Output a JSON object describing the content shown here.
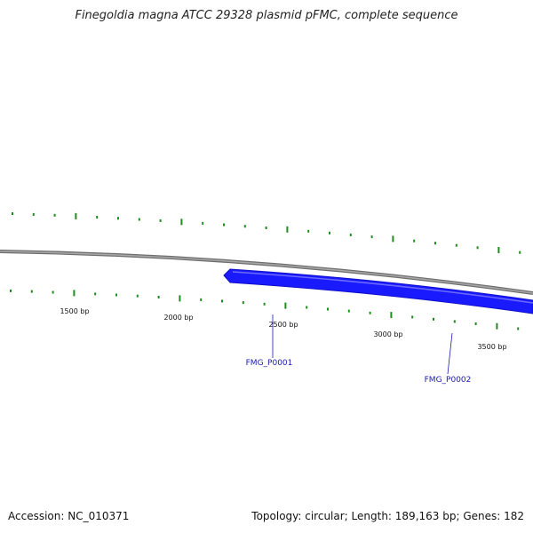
{
  "title": "Finegoldia magna ATCC 29328 plasmid pFMC, complete sequence",
  "footer": {
    "accession": "Accession: NC_010371",
    "summary": "Topology: circular; Length: 189,163 bp; Genes: 182"
  },
  "colors": {
    "backbone": "#8a8a8a",
    "gene_forward": "#1a1aff",
    "gene_label": "#1a1aaa",
    "gc_marks": "#1e8c1e",
    "tick_label": "#111111"
  },
  "scale_ticks": [
    {
      "label": "1500 bp"
    },
    {
      "label": "2000 bp"
    },
    {
      "label": "2500 bp"
    },
    {
      "label": "3000 bp"
    },
    {
      "label": "3500 bp"
    }
  ],
  "genes": [
    {
      "id": "FMG_P0001",
      "strand": "forward"
    },
    {
      "id": "FMG_P0002",
      "strand": "forward"
    }
  ]
}
